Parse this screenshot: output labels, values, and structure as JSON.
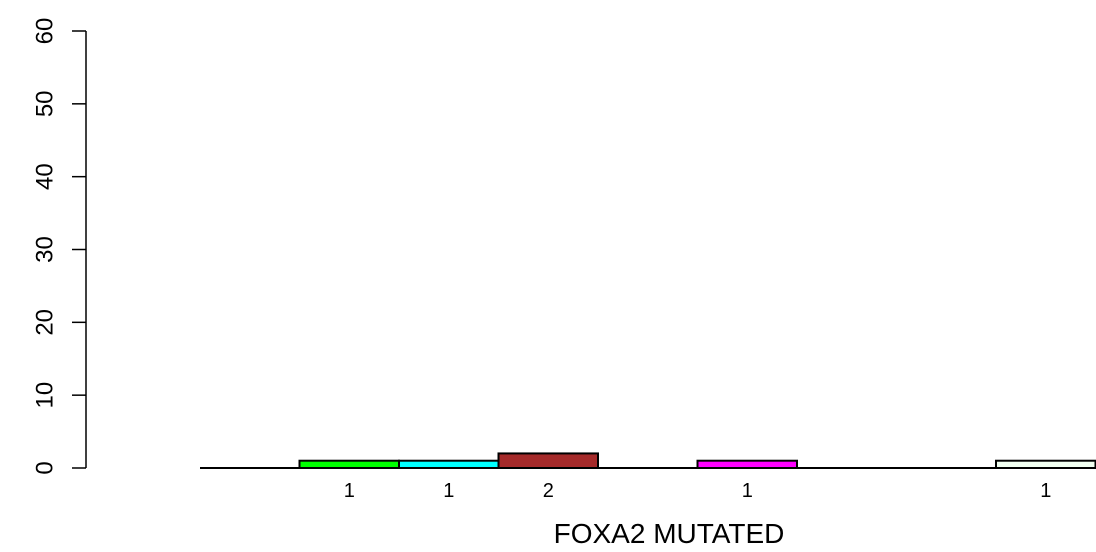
{
  "chart_data": {
    "type": "bar",
    "xlabel": "FOXA2 MUTATED",
    "ylabel": "",
    "ylim": [
      0,
      60
    ],
    "yticks": [
      "0",
      "10",
      "20",
      "30",
      "40",
      "50",
      "60"
    ],
    "grid": false,
    "legend": "none",
    "slots": 9,
    "bars": [
      {
        "slot": 1,
        "value": 1,
        "label": "1",
        "color": "#00ff00"
      },
      {
        "slot": 2,
        "value": 1,
        "label": "1",
        "color": "#00ffff"
      },
      {
        "slot": 3,
        "value": 2,
        "label": "2",
        "color": "#a52a2a"
      },
      {
        "slot": 5,
        "value": 1,
        "label": "1",
        "color": "#ff00ff"
      },
      {
        "slot": 8,
        "value": 1,
        "label": "1",
        "color": "#f0fff0"
      }
    ]
  }
}
